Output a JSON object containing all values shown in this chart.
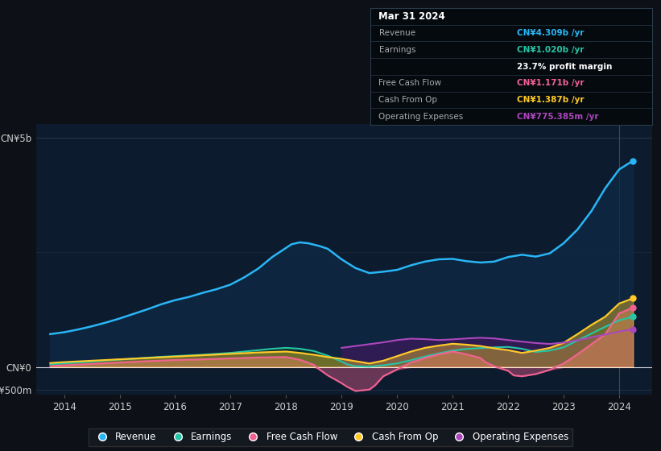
{
  "background_color": "#0d1117",
  "chart_bg": "#0d1b2e",
  "ylabel_top": "CN¥5b",
  "ylabel_zero": "CN¥0",
  "ylabel_neg": "-CN¥500m",
  "xlim": [
    2013.5,
    2024.6
  ],
  "ylim": [
    -600,
    5300
  ],
  "ytick_vals": [
    -500,
    0,
    5000
  ],
  "xtick_labels": [
    "2014",
    "2015",
    "2016",
    "2017",
    "2018",
    "2019",
    "2020",
    "2021",
    "2022",
    "2023",
    "2024"
  ],
  "xtick_positions": [
    2014,
    2015,
    2016,
    2017,
    2018,
    2019,
    2020,
    2021,
    2022,
    2023,
    2024
  ],
  "revenue_color": "#29b6f6",
  "earnings_color": "#26c6a5",
  "fcf_color": "#f06292",
  "cashop_color": "#ffca28",
  "opex_color": "#ab47bc",
  "revenue_fill": "#0d2a45",
  "earnings_fill": "#0d3528",
  "operating_fill": "#3a1a5a",
  "info": {
    "date": "Mar 31 2024",
    "revenue_val": "CN¥4.309b",
    "earnings_val": "CN¥1.020b",
    "margin": "23.7%",
    "fcf_val": "CN¥1.171b",
    "cashop_val": "CN¥1.387b",
    "opex_val": "CN¥775.385m"
  },
  "revenue_x": [
    2013.75,
    2014.0,
    2014.25,
    2014.5,
    2014.75,
    2015.0,
    2015.25,
    2015.5,
    2015.75,
    2016.0,
    2016.25,
    2016.5,
    2016.75,
    2017.0,
    2017.25,
    2017.5,
    2017.75,
    2018.0,
    2018.1,
    2018.25,
    2018.4,
    2018.6,
    2018.75,
    2019.0,
    2019.25,
    2019.5,
    2019.75,
    2020.0,
    2020.25,
    2020.5,
    2020.75,
    2021.0,
    2021.25,
    2021.5,
    2021.75,
    2022.0,
    2022.25,
    2022.5,
    2022.75,
    2023.0,
    2023.25,
    2023.5,
    2023.75,
    2024.0,
    2024.25
  ],
  "revenue_y": [
    720,
    760,
    820,
    890,
    970,
    1060,
    1160,
    1260,
    1370,
    1460,
    1530,
    1620,
    1700,
    1800,
    1960,
    2150,
    2400,
    2600,
    2680,
    2720,
    2700,
    2640,
    2580,
    2350,
    2160,
    2050,
    2080,
    2120,
    2220,
    2300,
    2350,
    2360,
    2310,
    2280,
    2300,
    2400,
    2450,
    2410,
    2480,
    2700,
    3000,
    3400,
    3900,
    4309,
    4500
  ],
  "earnings_x": [
    2013.75,
    2014.0,
    2014.25,
    2014.5,
    2014.75,
    2015.0,
    2015.25,
    2015.5,
    2015.75,
    2016.0,
    2016.25,
    2016.5,
    2016.75,
    2017.0,
    2017.25,
    2017.5,
    2017.75,
    2018.0,
    2018.25,
    2018.5,
    2018.75,
    2019.0,
    2019.1,
    2019.25,
    2019.5,
    2019.75,
    2020.0,
    2020.25,
    2020.5,
    2020.75,
    2021.0,
    2021.25,
    2021.5,
    2021.75,
    2022.0,
    2022.25,
    2022.5,
    2022.75,
    2023.0,
    2023.25,
    2023.5,
    2023.75,
    2024.0,
    2024.25
  ],
  "earnings_y": [
    60,
    80,
    100,
    120,
    145,
    165,
    185,
    205,
    225,
    240,
    255,
    270,
    290,
    310,
    340,
    370,
    400,
    420,
    400,
    350,
    250,
    120,
    60,
    20,
    10,
    40,
    80,
    150,
    230,
    300,
    360,
    395,
    415,
    430,
    440,
    400,
    330,
    360,
    430,
    580,
    730,
    880,
    1020,
    1100
  ],
  "fcf_x": [
    2013.75,
    2014.0,
    2014.5,
    2015.0,
    2015.5,
    2016.0,
    2016.5,
    2017.0,
    2017.5,
    2018.0,
    2018.25,
    2018.5,
    2018.6,
    2018.75,
    2019.0,
    2019.1,
    2019.25,
    2019.5,
    2019.6,
    2019.75,
    2020.0,
    2020.25,
    2020.5,
    2020.75,
    2021.0,
    2021.25,
    2021.5,
    2021.6,
    2021.75,
    2022.0,
    2022.1,
    2022.25,
    2022.5,
    2022.75,
    2023.0,
    2023.25,
    2023.5,
    2023.75,
    2024.0,
    2024.25
  ],
  "fcf_y": [
    20,
    40,
    70,
    100,
    130,
    155,
    170,
    190,
    210,
    220,
    160,
    50,
    -50,
    -180,
    -350,
    -430,
    -520,
    -490,
    -400,
    -200,
    -50,
    100,
    200,
    280,
    340,
    280,
    200,
    100,
    20,
    -80,
    -180,
    -200,
    -150,
    -60,
    80,
    280,
    500,
    720,
    1171,
    1300
  ],
  "cashop_x": [
    2013.75,
    2014.0,
    2014.5,
    2015.0,
    2015.5,
    2016.0,
    2016.5,
    2017.0,
    2017.5,
    2018.0,
    2018.25,
    2018.5,
    2018.75,
    2019.0,
    2019.25,
    2019.5,
    2019.75,
    2020.0,
    2020.25,
    2020.5,
    2020.75,
    2021.0,
    2021.25,
    2021.5,
    2021.75,
    2022.0,
    2022.25,
    2022.5,
    2022.75,
    2023.0,
    2023.25,
    2023.5,
    2023.75,
    2024.0,
    2024.25
  ],
  "cashop_y": [
    90,
    110,
    140,
    170,
    200,
    230,
    260,
    290,
    320,
    340,
    310,
    270,
    220,
    180,
    130,
    80,
    140,
    240,
    340,
    420,
    470,
    510,
    490,
    460,
    410,
    370,
    310,
    360,
    420,
    530,
    720,
    920,
    1100,
    1387,
    1500
  ],
  "opex_x": [
    2019.0,
    2019.25,
    2019.5,
    2019.75,
    2020.0,
    2020.25,
    2020.5,
    2020.75,
    2021.0,
    2021.25,
    2021.5,
    2021.75,
    2022.0,
    2022.25,
    2022.5,
    2022.75,
    2023.0,
    2023.25,
    2023.5,
    2023.75,
    2024.0,
    2024.25
  ],
  "opex_y": [
    420,
    460,
    500,
    540,
    590,
    620,
    610,
    590,
    605,
    625,
    640,
    625,
    590,
    555,
    525,
    505,
    535,
    585,
    650,
    710,
    775,
    830
  ]
}
